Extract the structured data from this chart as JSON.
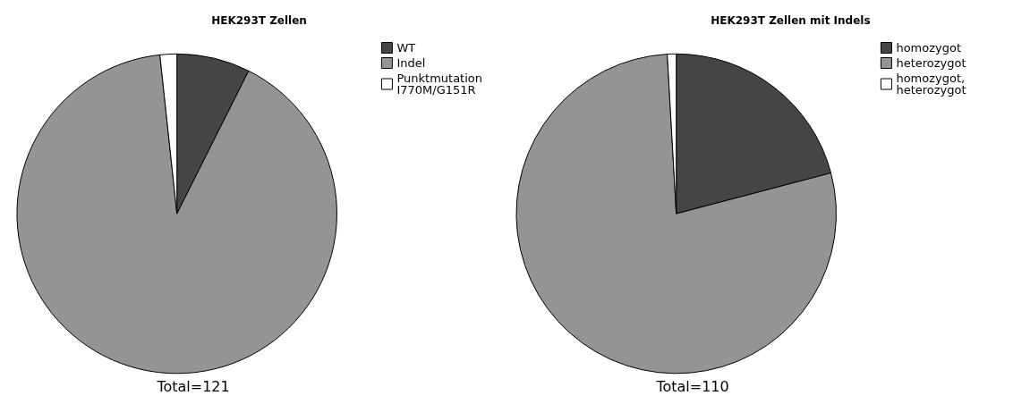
{
  "chart_data": [
    {
      "type": "pie",
      "title": "HEK293T Zellen",
      "categories": [
        "WT",
        "Indel",
        "Punktmutation\nI770M/G151R"
      ],
      "values": [
        7.4,
        90.9,
        1.7
      ],
      "colors": [
        "#444547",
        "#959393",
        "#ffffff"
      ],
      "legend": "right",
      "annotations": [
        "Total=121"
      ]
    },
    {
      "type": "pie",
      "title": "HEK293T Zellen mit Indels",
      "categories": [
        "homozygot",
        "heterozygot",
        "homozygot,\nheterozygot"
      ],
      "values": [
        20.9,
        78.2,
        0.9
      ],
      "colors": [
        "#444547",
        "#959393",
        "#ffffff"
      ],
      "legend": "right",
      "annotations": [
        "Total=110"
      ]
    }
  ]
}
